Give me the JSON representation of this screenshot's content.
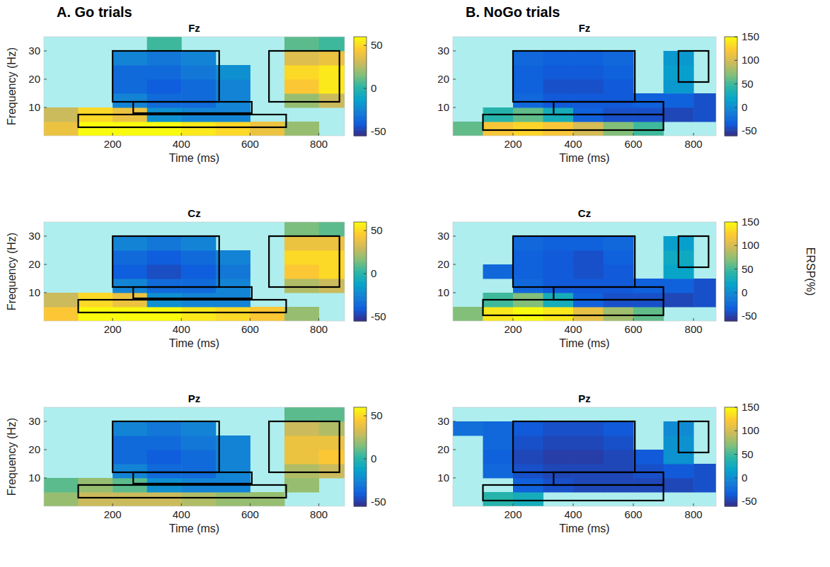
{
  "chart_data": [
    {
      "type": "heatmap",
      "panel": "A. Go trials",
      "title": "Fz",
      "x_label": "Time (ms)",
      "y_label": "Frequency (Hz)",
      "x": [
        50,
        150,
        250,
        350,
        450,
        550,
        650,
        750,
        850
      ],
      "y": [
        2.5,
        7.5,
        12.5,
        17.5,
        22.5,
        27.5,
        32.5
      ],
      "cells": [
        [
          40,
          60,
          60,
          60,
          55,
          50,
          40,
          20,
          null
        ],
        [
          30,
          50,
          40,
          -20,
          -25,
          -25,
          null,
          null,
          null
        ],
        [
          null,
          null,
          -25,
          -35,
          -35,
          -25,
          null,
          20,
          30
        ],
        [
          null,
          null,
          -35,
          -40,
          -35,
          -25,
          null,
          45,
          55
        ],
        [
          null,
          null,
          -35,
          -35,
          -30,
          -20,
          null,
          50,
          55
        ],
        [
          null,
          null,
          -25,
          -30,
          -25,
          null,
          null,
          35,
          40
        ],
        [
          null,
          null,
          null,
          5,
          null,
          null,
          null,
          10,
          5
        ]
      ],
      "xlim": [
        0,
        875
      ],
      "ylim": [
        0,
        35
      ],
      "xticks": [
        200,
        400,
        600,
        800
      ],
      "yticks": [
        10,
        20,
        30
      ],
      "colorbar": {
        "lim": [
          -55,
          60
        ],
        "ticks": [
          -50,
          0,
          50
        ]
      },
      "boxes": [
        {
          "x": [
            200,
            510
          ],
          "y": [
            12,
            30
          ]
        },
        {
          "x": [
            260,
            605
          ],
          "y": [
            8,
            12
          ]
        },
        {
          "x": [
            100,
            705
          ],
          "y": [
            3,
            7.5
          ]
        },
        {
          "x": [
            655,
            860
          ],
          "y": [
            12,
            30
          ]
        }
      ]
    },
    {
      "type": "heatmap",
      "title": "Cz",
      "x_label": "Time (ms)",
      "y_label": "Frequency (Hz)",
      "x": [
        50,
        150,
        250,
        350,
        450,
        550,
        650,
        750,
        850
      ],
      "y": [
        2.5,
        7.5,
        12.5,
        17.5,
        22.5,
        27.5,
        32.5
      ],
      "cells": [
        [
          45,
          60,
          60,
          60,
          55,
          50,
          45,
          20,
          null
        ],
        [
          30,
          50,
          40,
          -20,
          -25,
          -25,
          null,
          null,
          null
        ],
        [
          null,
          null,
          -25,
          -35,
          -35,
          -25,
          null,
          25,
          30
        ],
        [
          null,
          null,
          -40,
          -45,
          -40,
          -30,
          null,
          45,
          50
        ],
        [
          null,
          null,
          -35,
          -40,
          -35,
          -25,
          null,
          50,
          50
        ],
        [
          null,
          null,
          -25,
          -30,
          -25,
          null,
          null,
          40,
          40
        ],
        [
          null,
          null,
          null,
          null,
          null,
          null,
          null,
          15,
          10
        ]
      ],
      "xlim": [
        0,
        875
      ],
      "ylim": [
        0,
        35
      ],
      "xticks": [
        200,
        400,
        600,
        800
      ],
      "yticks": [
        10,
        20,
        30
      ],
      "colorbar": {
        "lim": [
          -55,
          60
        ],
        "ticks": [
          -50,
          0,
          50
        ]
      },
      "boxes": [
        {
          "x": [
            200,
            510
          ],
          "y": [
            12,
            30
          ]
        },
        {
          "x": [
            260,
            605
          ],
          "y": [
            8,
            12
          ]
        },
        {
          "x": [
            100,
            705
          ],
          "y": [
            3,
            7.5
          ]
        },
        {
          "x": [
            655,
            860
          ],
          "y": [
            12,
            30
          ]
        }
      ]
    },
    {
      "type": "heatmap",
      "title": "Pz",
      "x_label": "Time (ms)",
      "y_label": "Frequency (Hz)",
      "x": [
        50,
        150,
        250,
        350,
        450,
        550,
        650,
        750,
        850
      ],
      "y": [
        2.5,
        7.5,
        12.5,
        17.5,
        22.5,
        27.5,
        32.5
      ],
      "cells": [
        [
          20,
          30,
          30,
          30,
          25,
          20,
          20,
          null,
          null
        ],
        [
          10,
          20,
          10,
          -20,
          -25,
          -25,
          null,
          20,
          null
        ],
        [
          null,
          null,
          -25,
          -35,
          -35,
          -25,
          null,
          25,
          30
        ],
        [
          null,
          null,
          -35,
          -40,
          -35,
          -25,
          null,
          40,
          45
        ],
        [
          null,
          null,
          -35,
          -35,
          -30,
          -25,
          null,
          40,
          40
        ],
        [
          null,
          null,
          -25,
          -30,
          -25,
          null,
          null,
          30,
          25
        ],
        [
          null,
          null,
          null,
          null,
          null,
          null,
          null,
          10,
          10
        ]
      ],
      "xlim": [
        0,
        875
      ],
      "ylim": [
        0,
        35
      ],
      "xticks": [
        200,
        400,
        600,
        800
      ],
      "yticks": [
        10,
        20,
        30
      ],
      "colorbar": {
        "lim": [
          -55,
          60
        ],
        "ticks": [
          -50,
          0,
          50
        ]
      },
      "boxes": [
        {
          "x": [
            200,
            510
          ],
          "y": [
            12,
            30
          ]
        },
        {
          "x": [
            260,
            605
          ],
          "y": [
            8,
            12
          ]
        },
        {
          "x": [
            100,
            705
          ],
          "y": [
            3,
            7.5
          ]
        },
        {
          "x": [
            655,
            860
          ],
          "y": [
            12,
            30
          ]
        }
      ]
    },
    {
      "type": "heatmap",
      "panel": "B. NoGo trials",
      "title": "Fz",
      "x_label": "Time (ms)",
      "x": [
        50,
        150,
        250,
        350,
        450,
        550,
        650,
        750,
        850
      ],
      "y": [
        2.5,
        7.5,
        12.5,
        17.5,
        22.5,
        27.5,
        32.5
      ],
      "cells": [
        [
          60,
          120,
          130,
          120,
          100,
          70,
          50,
          null,
          null
        ],
        [
          null,
          40,
          60,
          30,
          -30,
          -40,
          -40,
          -45,
          -40
        ],
        [
          null,
          null,
          -25,
          -35,
          -35,
          -35,
          -30,
          -30,
          -40
        ],
        [
          null,
          null,
          -30,
          -40,
          -40,
          -35,
          null,
          10,
          null
        ],
        [
          null,
          null,
          -30,
          -35,
          -35,
          -30,
          null,
          15,
          null
        ],
        [
          null,
          null,
          -25,
          -30,
          -30,
          -25,
          null,
          10,
          null
        ],
        [
          null,
          null,
          null,
          null,
          null,
          null,
          null,
          null,
          null
        ]
      ],
      "xlim": [
        0,
        875
      ],
      "ylim": [
        0,
        35
      ],
      "xticks": [
        200,
        400,
        600,
        800
      ],
      "yticks": [
        10,
        20,
        30
      ],
      "colorbar": {
        "lim": [
          -60,
          150
        ],
        "ticks": [
          -50,
          0,
          50,
          100,
          150
        ]
      },
      "boxes": [
        {
          "x": [
            200,
            605
          ],
          "y": [
            12,
            30
          ]
        },
        {
          "x": [
            335,
            700
          ],
          "y": [
            7.5,
            12
          ]
        },
        {
          "x": [
            100,
            700
          ],
          "y": [
            2,
            7.5
          ]
        },
        {
          "x": [
            750,
            850
          ],
          "y": [
            19,
            30
          ]
        }
      ]
    },
    {
      "type": "heatmap",
      "title": "Cz",
      "x_label": "Time (ms)",
      "colorbar_label": "ERSP(%)",
      "x": [
        50,
        150,
        250,
        350,
        450,
        550,
        650,
        750,
        850
      ],
      "y": [
        2.5,
        7.5,
        12.5,
        17.5,
        22.5,
        27.5,
        32.5
      ],
      "cells": [
        [
          70,
          140,
          150,
          140,
          110,
          80,
          60,
          null,
          null
        ],
        [
          null,
          50,
          70,
          30,
          -30,
          -40,
          -40,
          -45,
          -40
        ],
        [
          null,
          null,
          -25,
          -35,
          -35,
          -35,
          -30,
          -30,
          -40
        ],
        [
          null,
          -25,
          -30,
          -35,
          -40,
          -35,
          null,
          20,
          null
        ],
        [
          null,
          null,
          -30,
          -35,
          -40,
          -30,
          null,
          25,
          null
        ],
        [
          null,
          null,
          -25,
          -30,
          -30,
          -25,
          null,
          15,
          null
        ],
        [
          null,
          null,
          null,
          null,
          null,
          null,
          null,
          null,
          null
        ]
      ],
      "xlim": [
        0,
        875
      ],
      "ylim": [
        0,
        35
      ],
      "xticks": [
        200,
        400,
        600,
        800
      ],
      "yticks": [
        10,
        20,
        30
      ],
      "colorbar": {
        "lim": [
          -60,
          150
        ],
        "ticks": [
          -50,
          0,
          50,
          100,
          150
        ]
      },
      "boxes": [
        {
          "x": [
            200,
            605
          ],
          "y": [
            12,
            30
          ]
        },
        {
          "x": [
            335,
            700
          ],
          "y": [
            7.5,
            12
          ]
        },
        {
          "x": [
            100,
            700
          ],
          "y": [
            2,
            7.5
          ]
        },
        {
          "x": [
            750,
            850
          ],
          "y": [
            19,
            30
          ]
        }
      ]
    },
    {
      "type": "heatmap",
      "title": "Pz",
      "x_label": "Time (ms)",
      "x": [
        50,
        150,
        250,
        350,
        450,
        550,
        650,
        750,
        850
      ],
      "y": [
        2.5,
        7.5,
        12.5,
        17.5,
        22.5,
        27.5,
        32.5
      ],
      "cells": [
        [
          null,
          40,
          30,
          null,
          null,
          null,
          null,
          null,
          null
        ],
        [
          null,
          null,
          -30,
          -40,
          -45,
          -45,
          -45,
          -45,
          -40
        ],
        [
          null,
          -25,
          -40,
          -45,
          -45,
          -45,
          -40,
          -35,
          -40
        ],
        [
          null,
          -30,
          -45,
          -50,
          -50,
          -45,
          -35,
          5,
          null
        ],
        [
          null,
          -25,
          -40,
          -45,
          -45,
          -40,
          null,
          5,
          null
        ],
        [
          -20,
          -25,
          -35,
          -40,
          -40,
          -35,
          null,
          0,
          null
        ],
        [
          null,
          null,
          null,
          null,
          null,
          null,
          null,
          null,
          null
        ]
      ],
      "xlim": [
        0,
        875
      ],
      "ylim": [
        0,
        35
      ],
      "xticks": [
        200,
        400,
        600,
        800
      ],
      "yticks": [
        10,
        20,
        30
      ],
      "colorbar": {
        "lim": [
          -60,
          150
        ],
        "ticks": [
          -50,
          0,
          50,
          100,
          150
        ]
      },
      "boxes": [
        {
          "x": [
            200,
            605
          ],
          "y": [
            12,
            30
          ]
        },
        {
          "x": [
            335,
            700
          ],
          "y": [
            7.5,
            12
          ]
        },
        {
          "x": [
            100,
            700
          ],
          "y": [
            2,
            7.5
          ]
        },
        {
          "x": [
            750,
            850
          ],
          "y": [
            19,
            30
          ]
        }
      ]
    }
  ]
}
